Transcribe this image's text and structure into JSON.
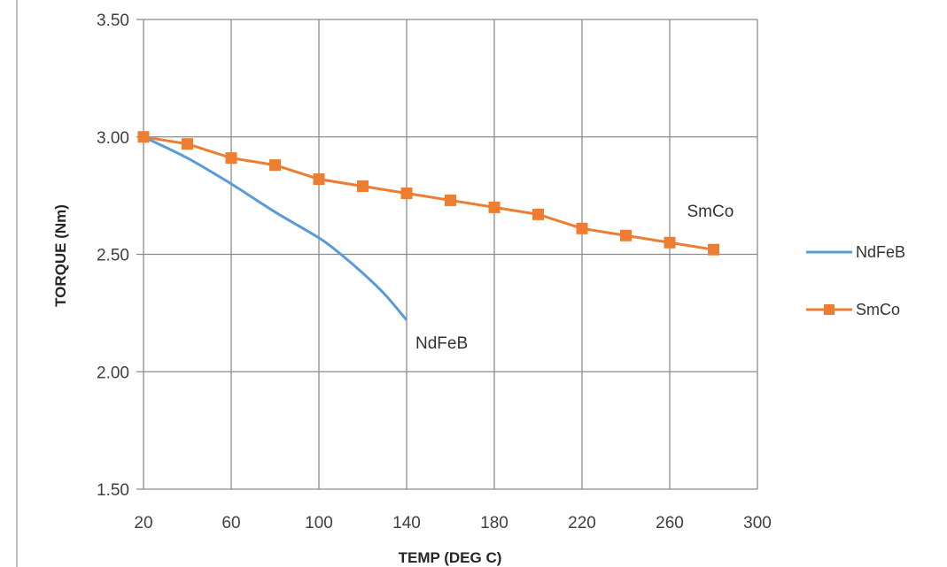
{
  "chart_data": {
    "type": "line",
    "title": "",
    "xlabel": "TEMP  (DEG C)",
    "ylabel": "TORQUE  (Nm)",
    "xlim": [
      20,
      300
    ],
    "ylim": [
      1.5,
      3.5
    ],
    "x_ticks": [
      "20",
      "60",
      "100",
      "140",
      "180",
      "220",
      "260",
      "300"
    ],
    "y_ticks": [
      "1.50",
      "2.00",
      "2.50",
      "3.00",
      "3.50"
    ],
    "x_tick_values": [
      20,
      60,
      100,
      140,
      180,
      220,
      260,
      300
    ],
    "y_tick_values": [
      1.5,
      2.0,
      2.5,
      3.0,
      3.5
    ],
    "grid": true,
    "legend_position": "right",
    "series": [
      {
        "name": "NdFeB",
        "color": "#5b9bd5",
        "marker": "none",
        "smooth": true,
        "x": [
          20,
          40,
          60,
          80,
          100,
          110,
          120,
          130,
          140
        ],
        "y": [
          3.0,
          2.91,
          2.8,
          2.68,
          2.57,
          2.5,
          2.42,
          2.33,
          2.22
        ]
      },
      {
        "name": "SmCo",
        "color": "#ed7d31",
        "marker": "square",
        "smooth": false,
        "x": [
          20,
          40,
          60,
          80,
          100,
          120,
          140,
          160,
          180,
          200,
          220,
          240,
          260,
          280
        ],
        "y": [
          3.0,
          2.97,
          2.91,
          2.88,
          2.82,
          2.79,
          2.76,
          2.73,
          2.7,
          2.67,
          2.61,
          2.58,
          2.55,
          2.52
        ]
      }
    ],
    "annotations": [
      {
        "text": "NdFeB",
        "x": 140,
        "y": 2.22
      },
      {
        "text": "SmCo",
        "x": 280,
        "y": 2.52
      }
    ]
  }
}
